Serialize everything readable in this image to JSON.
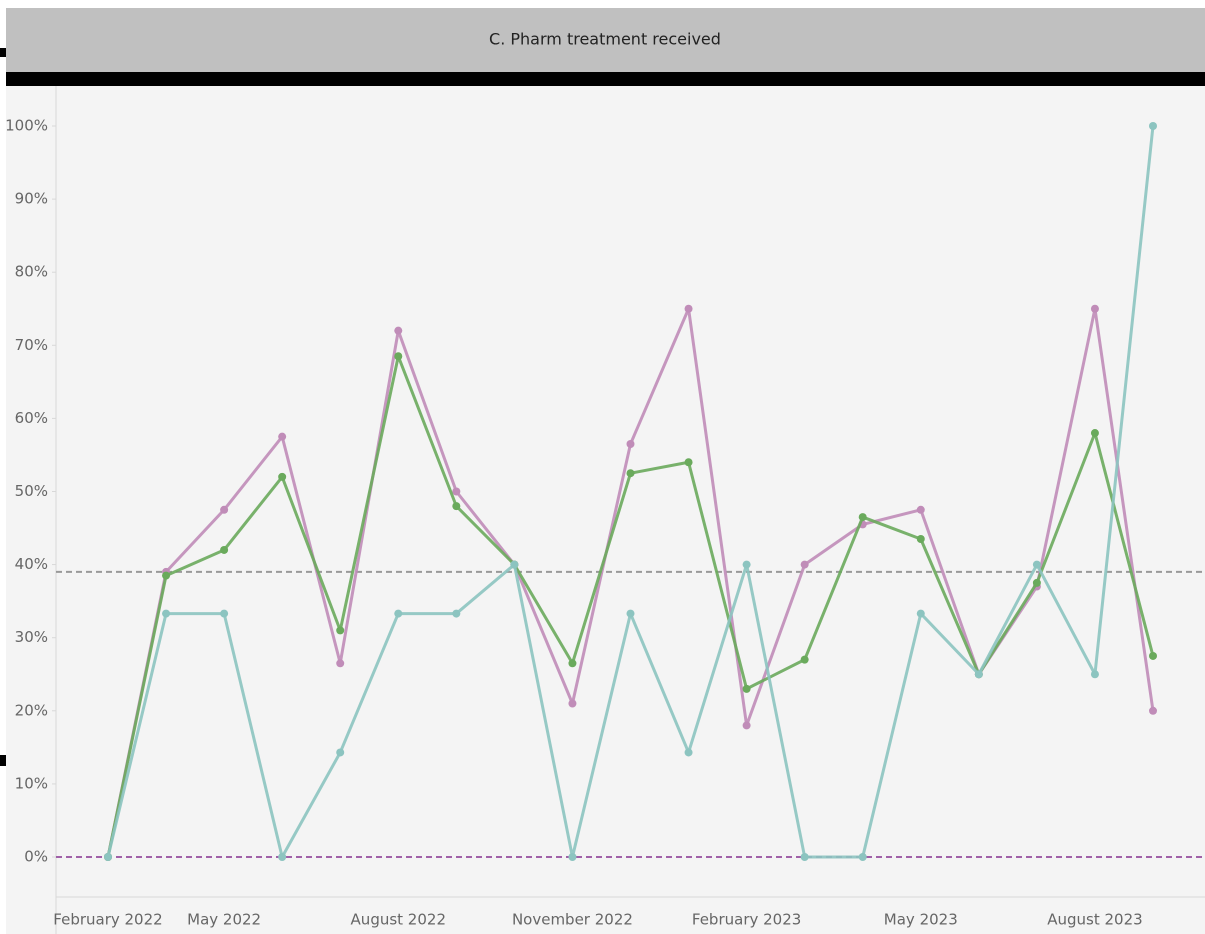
{
  "chart_data": {
    "type": "line",
    "title": "C. Pharm treatment received",
    "categories": [
      "February 2022",
      null,
      "May 2022",
      null,
      null,
      "August 2022",
      null,
      null,
      "November 2022",
      null,
      null,
      "February 2023",
      null,
      null,
      "May 2023",
      null,
      null,
      "August 2023",
      null
    ],
    "series": [
      {
        "color": "#c08cb8",
        "values": [
          0,
          39,
          47.5,
          57.5,
          26.5,
          72,
          50,
          40,
          21,
          56.5,
          75,
          18,
          40,
          45.5,
          47.5,
          25,
          37,
          75,
          20
        ]
      },
      {
        "color": "#6aaa5c",
        "values": [
          0,
          38.5,
          42,
          52,
          31,
          68.5,
          48,
          40,
          26.5,
          52.5,
          54,
          23,
          27,
          46.5,
          43.5,
          25,
          37.5,
          58,
          27.5
        ]
      },
      {
        "color": "#8cc4c0",
        "values": [
          0,
          33.3,
          33.3,
          0,
          14.3,
          33.3,
          33.3,
          40,
          0,
          33.3,
          14.3,
          40,
          0,
          0,
          33.3,
          25,
          40,
          25,
          100
        ]
      }
    ],
    "reference_lines": [
      {
        "value": 39,
        "color": "#999999"
      },
      {
        "value": 0,
        "color": "#a060a8"
      }
    ],
    "ylim": [
      0,
      100
    ],
    "yticks": [
      {
        "value": 0,
        "label": "0%"
      },
      {
        "value": 10,
        "label": "10%"
      },
      {
        "value": 20,
        "label": "20%"
      },
      {
        "value": 30,
        "label": "30%"
      },
      {
        "value": 40,
        "label": "40%"
      },
      {
        "value": 50,
        "label": "50%"
      },
      {
        "value": 60,
        "label": "60%"
      },
      {
        "value": 70,
        "label": "70%"
      },
      {
        "value": 80,
        "label": "80%"
      },
      {
        "value": 90,
        "label": "90%"
      },
      {
        "value": 100,
        "label": "100%"
      }
    ],
    "grid": false
  }
}
